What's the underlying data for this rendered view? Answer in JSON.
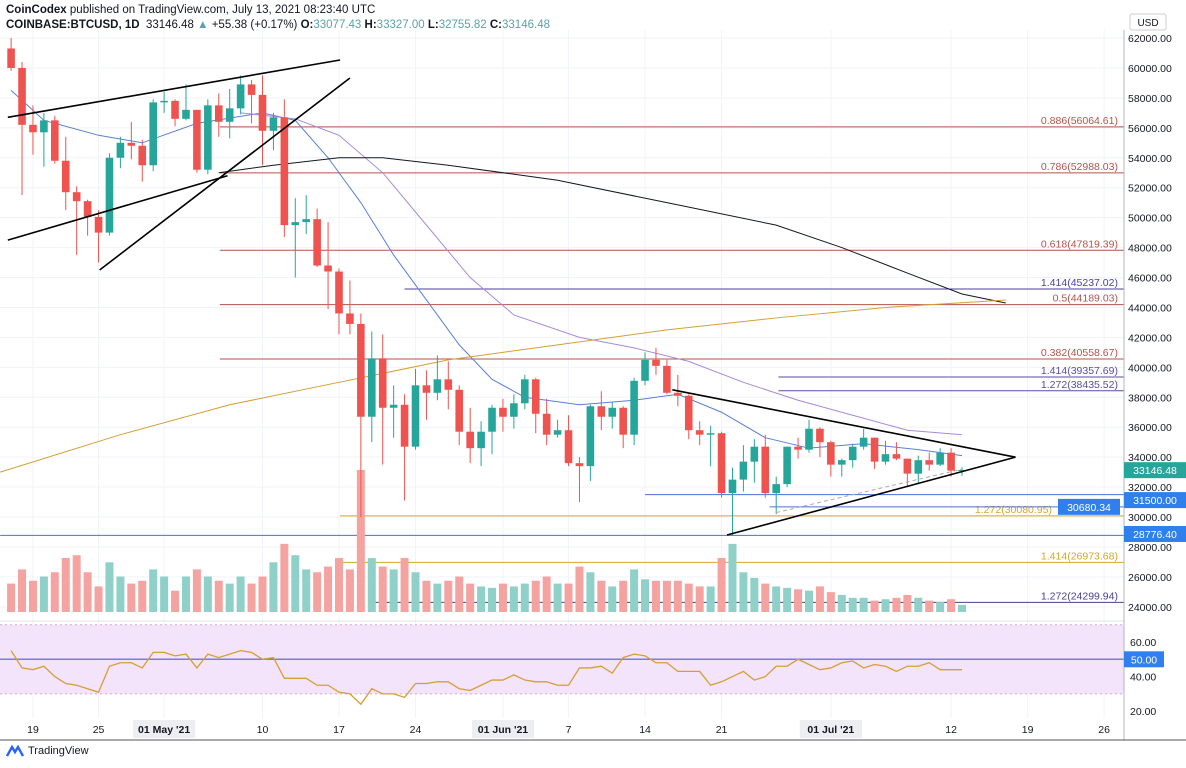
{
  "header": {
    "publisher": "CoinCodex",
    "published_text": "published on TradingView.com, July 13, 2021 08:23:40 UTC",
    "symbol": "COINBASE:BTCUSD, 1D",
    "last": "33146.48",
    "change": "+55.38 (+0.17%)",
    "o_label": "O:",
    "o": "33077.43",
    "h_label": "H:",
    "h": "33327.00",
    "l_label": "L:",
    "l": "32755.82",
    "c_label": "C:",
    "c": "33146.48"
  },
  "footer": {
    "brand": "TradingView"
  },
  "colors": {
    "up": "#26a69a",
    "down": "#ef5350",
    "up_vol": "#8fd0c8",
    "down_vol": "#f5a3a1",
    "rsi": "#d4a036",
    "rsi_band": "#f3e3fb"
  },
  "chart_data": {
    "type": "candlestick",
    "title": "COINBASE:BTCUSD, 1D",
    "currency_label": "USD",
    "start_date": "2021-04-17",
    "ylim": [
      24000,
      62000
    ],
    "price_ticks": [
      "62000.00",
      "60000.00",
      "58000.00",
      "56000.00",
      "54000.00",
      "52000.00",
      "50000.00",
      "48000.00",
      "46000.00",
      "44000.00",
      "42000.00",
      "40000.00",
      "38000.00",
      "36000.00",
      "34000.00",
      "32000.00",
      "30000.00",
      "28000.00",
      "26000.00",
      "24000.00"
    ],
    "date_ticks": [
      {
        "day": 2,
        "label": "19",
        "bold": false
      },
      {
        "day": 8,
        "label": "25",
        "bold": false
      },
      {
        "day": 14,
        "label": "01 May '21",
        "bold": true
      },
      {
        "day": 23,
        "label": "10",
        "bold": false
      },
      {
        "day": 30,
        "label": "17",
        "bold": false
      },
      {
        "day": 37,
        "label": "24",
        "bold": false
      },
      {
        "day": 45,
        "label": "01 Jun '21",
        "bold": true
      },
      {
        "day": 51,
        "label": "7",
        "bold": false
      },
      {
        "day": 58,
        "label": "14",
        "bold": false
      },
      {
        "day": 65,
        "label": "21",
        "bold": false
      },
      {
        "day": 75,
        "label": "01 Jul '21",
        "bold": true
      },
      {
        "day": 86,
        "label": "12",
        "bold": false
      },
      {
        "day": 93,
        "label": "19",
        "bold": false
      },
      {
        "day": 100,
        "label": "26",
        "bold": false
      }
    ],
    "ohlc": [
      [
        61300,
        62000,
        59800,
        60000
      ],
      [
        60000,
        60400,
        51500,
        56200
      ],
      [
        56200,
        57500,
        54200,
        55700
      ],
      [
        55700,
        57000,
        53400,
        56500
      ],
      [
        56500,
        56800,
        53600,
        53800
      ],
      [
        53800,
        55400,
        50500,
        51700
      ],
      [
        51700,
        52100,
        47500,
        51100
      ],
      [
        51100,
        51200,
        48800,
        50050
      ],
      [
        50050,
        50500,
        47000,
        49000
      ],
      [
        49000,
        54300,
        48800,
        54000
      ],
      [
        54000,
        55400,
        53300,
        55000
      ],
      [
        55000,
        56400,
        53900,
        54800
      ],
      [
        54800,
        55200,
        52400,
        53500
      ],
      [
        53500,
        57900,
        53100,
        57700
      ],
      [
        57700,
        58400,
        57000,
        57800
      ],
      [
        57800,
        57900,
        56100,
        56600
      ],
      [
        56600,
        58900,
        56500,
        57200
      ],
      [
        57200,
        57200,
        53000,
        53200
      ],
      [
        53200,
        57900,
        52900,
        57500
      ],
      [
        57500,
        58300,
        55400,
        56400
      ],
      [
        56400,
        58600,
        55300,
        57300
      ],
      [
        57300,
        59500,
        56900,
        58900
      ],
      [
        58900,
        59200,
        56300,
        58200
      ],
      [
        58200,
        59500,
        53500,
        55800
      ],
      [
        55800,
        57000,
        54500,
        56700
      ],
      [
        56700,
        57900,
        48700,
        49500
      ],
      [
        49500,
        51300,
        46000,
        49700
      ],
      [
        49700,
        51500,
        48900,
        49900
      ],
      [
        49900,
        50600,
        46700,
        46800
      ],
      [
        46800,
        49700,
        43900,
        46400
      ],
      [
        46400,
        46600,
        42200,
        43600
      ],
      [
        43600,
        45800,
        42200,
        42900
      ],
      [
        42900,
        43600,
        30000,
        36700
      ],
      [
        36700,
        42400,
        35000,
        40600
      ],
      [
        40600,
        42200,
        33500,
        37300
      ],
      [
        37300,
        38800,
        35300,
        37500
      ],
      [
        37500,
        38200,
        31100,
        34700
      ],
      [
        34700,
        39900,
        34500,
        38800
      ],
      [
        38800,
        39800,
        36500,
        38300
      ],
      [
        38300,
        40800,
        37800,
        39200
      ],
      [
        39200,
        40400,
        37200,
        38500
      ],
      [
        38500,
        38800,
        34800,
        35700
      ],
      [
        35700,
        37300,
        33600,
        34600
      ],
      [
        34600,
        36400,
        33400,
        35700
      ],
      [
        35700,
        37500,
        34200,
        37300
      ],
      [
        37300,
        37900,
        35700,
        36700
      ],
      [
        36700,
        38200,
        35900,
        37600
      ],
      [
        37600,
        39500,
        37200,
        39200
      ],
      [
        39200,
        39300,
        35600,
        36900
      ],
      [
        36900,
        37900,
        34800,
        35500
      ],
      [
        35500,
        36500,
        35300,
        35800
      ],
      [
        35800,
        36800,
        33400,
        33600
      ],
      [
        33600,
        34000,
        31000,
        33400
      ],
      [
        33400,
        37500,
        32400,
        37400
      ],
      [
        37400,
        38400,
        35800,
        36700
      ],
      [
        36700,
        37700,
        35900,
        37300
      ],
      [
        37300,
        37400,
        34600,
        35500
      ],
      [
        35500,
        39300,
        34800,
        39100
      ],
      [
        39100,
        41000,
        38800,
        40500
      ],
      [
        40500,
        41300,
        39500,
        40100
      ],
      [
        40100,
        40500,
        38200,
        38300
      ],
      [
        38300,
        39500,
        37400,
        38100
      ],
      [
        38100,
        38200,
        35200,
        35800
      ],
      [
        35800,
        36400,
        34800,
        35500
      ],
      [
        35500,
        36100,
        33400,
        35600
      ],
      [
        35600,
        35700,
        31300,
        31600
      ],
      [
        31600,
        33300,
        28800,
        32500
      ],
      [
        32500,
        34800,
        31700,
        33700
      ],
      [
        33700,
        35200,
        32300,
        34700
      ],
      [
        34700,
        35500,
        31300,
        31600
      ],
      [
        31600,
        32700,
        30200,
        32200
      ],
      [
        32200,
        34700,
        32000,
        34700
      ],
      [
        34700,
        35300,
        33900,
        34500
      ],
      [
        34500,
        36500,
        34300,
        35900
      ],
      [
        35900,
        36000,
        34000,
        35000
      ],
      [
        35000,
        35100,
        32700,
        33500
      ],
      [
        33500,
        33900,
        32700,
        33800
      ],
      [
        33800,
        34900,
        33300,
        34700
      ],
      [
        34700,
        35900,
        34500,
        35300
      ],
      [
        35300,
        35300,
        33200,
        33700
      ],
      [
        33700,
        35100,
        33500,
        34200
      ],
      [
        34200,
        35000,
        33800,
        33900
      ],
      [
        33900,
        33900,
        32100,
        32900
      ],
      [
        32900,
        34100,
        32300,
        33800
      ],
      [
        33800,
        34300,
        33100,
        33500
      ],
      [
        33500,
        34600,
        33400,
        34300
      ],
      [
        34300,
        34600,
        32700,
        33100
      ],
      [
        33077.43,
        33327,
        32755.82,
        33146.48
      ]
    ],
    "volume_relative": [
      20,
      30,
      22,
      25,
      28,
      38,
      40,
      28,
      18,
      35,
      25,
      20,
      22,
      30,
      25,
      15,
      25,
      30,
      25,
      22,
      20,
      25,
      20,
      25,
      35,
      48,
      40,
      30,
      28,
      32,
      38,
      30,
      100,
      38,
      32,
      30,
      38,
      28,
      22,
      20,
      22,
      25,
      20,
      18,
      17,
      20,
      18,
      20,
      22,
      25,
      20,
      20,
      32,
      28,
      22,
      18,
      22,
      30,
      23,
      22,
      22,
      22,
      20,
      18,
      18,
      38,
      48,
      28,
      24,
      20,
      18,
      17,
      16,
      15,
      18,
      14,
      12,
      10,
      10,
      8,
      9,
      10,
      12,
      10,
      8,
      7,
      9,
      5
    ],
    "moving_averages": [
      {
        "name": "MA20",
        "color": "#5b7fd6",
        "points": [
          [
            0,
            58500
          ],
          [
            3,
            56500
          ],
          [
            8,
            55500
          ],
          [
            12,
            55000
          ],
          [
            17,
            56300
          ],
          [
            23,
            57000
          ],
          [
            26,
            56500
          ],
          [
            29,
            54000
          ],
          [
            32,
            51000
          ],
          [
            35,
            47500
          ],
          [
            38,
            44500
          ],
          [
            41,
            41500
          ],
          [
            44,
            39200
          ],
          [
            47,
            38000
          ],
          [
            52,
            37500
          ],
          [
            57,
            37800
          ],
          [
            61,
            38200
          ],
          [
            65,
            37000
          ],
          [
            69,
            35300
          ],
          [
            73,
            34600
          ],
          [
            78,
            34900
          ],
          [
            83,
            34500
          ],
          [
            87,
            34100
          ]
        ]
      },
      {
        "name": "MA50",
        "color": "#a98ad8",
        "points": [
          [
            21,
            57000
          ],
          [
            26,
            56600
          ],
          [
            30,
            55500
          ],
          [
            34,
            53000
          ],
          [
            38,
            49500
          ],
          [
            42,
            46000
          ],
          [
            46,
            43500
          ],
          [
            52,
            42000
          ],
          [
            57,
            41300
          ],
          [
            62,
            40400
          ],
          [
            67,
            39000
          ],
          [
            72,
            37800
          ],
          [
            77,
            36800
          ],
          [
            82,
            35800
          ],
          [
            87,
            35500
          ]
        ]
      },
      {
        "name": "MA100",
        "color": "#131722",
        "points": [
          [
            19,
            53000
          ],
          [
            24,
            53500
          ],
          [
            30,
            54000
          ],
          [
            34,
            54000
          ],
          [
            40,
            53500
          ],
          [
            50,
            52500
          ],
          [
            60,
            51000
          ],
          [
            70,
            49500
          ],
          [
            76,
            48000
          ],
          [
            82,
            46300
          ],
          [
            87,
            44900
          ],
          [
            91,
            44300
          ]
        ]
      },
      {
        "name": "MA200",
        "color": "#d4a036",
        "points": [
          [
            -1,
            33000
          ],
          [
            10,
            35500
          ],
          [
            20,
            37500
          ],
          [
            30,
            39000
          ],
          [
            40,
            40500
          ],
          [
            50,
            41500
          ],
          [
            60,
            42500
          ],
          [
            70,
            43300
          ],
          [
            80,
            44000
          ],
          [
            91,
            44500
          ]
        ]
      }
    ],
    "levels": [
      {
        "label": "0.886(56064.61)",
        "value": 56064.61,
        "from_day": 19.1,
        "color": "#b5534a"
      },
      {
        "label": "0.786(52988.03)",
        "value": 52988.03,
        "from_day": 19.1,
        "color": "#b5534a"
      },
      {
        "label": "0.618(47819.39)",
        "value": 47819.39,
        "from_day": 19.1,
        "color": "#b5534a"
      },
      {
        "label": "1.414(45237.02)",
        "value": 45237.02,
        "from_day": 36,
        "color": "#4b3fa0"
      },
      {
        "label": "0.5(44189.03)",
        "value": 44189.03,
        "from_day": 19.1,
        "color": "#b5534a"
      },
      {
        "label": "0.382(40558.67)",
        "value": 40558.67,
        "from_day": 19.1,
        "color": "#b5534a"
      },
      {
        "label": "1.414(39357.69)",
        "value": 39357.69,
        "from_day": 70.2,
        "color": "#5a4ba8"
      },
      {
        "label": "1.272(38435.52)",
        "value": 38435.52,
        "from_day": 70.2,
        "color": "#5a4ba8"
      },
      {
        "label": "1.272(30080.95)",
        "value": 30080.95,
        "from_day": 30.1,
        "color": "#d4a62a"
      },
      {
        "label": "1.414(26973.68)",
        "value": 26973.68,
        "from_day": 30.1,
        "color": "#d4a62a"
      },
      {
        "label": "1.272(24299.94)",
        "value": 24299.94,
        "from_day": 32.8,
        "color": "#4b3f8f"
      }
    ],
    "price_tags": [
      {
        "label": "33146.48",
        "value": 33146.48,
        "color": "#26a69a",
        "line_from_day": null
      },
      {
        "label": "31500.00",
        "value": 31500,
        "color": "#2f80ed",
        "line_from_day": 58
      },
      {
        "label": "30680.34",
        "value": 30680.34,
        "color": "#2f80ed",
        "line_from_day": 69.4
      },
      {
        "label": "28776.40",
        "value": 28776.4,
        "color": "#2f80ed",
        "line_from_day": -1
      }
    ],
    "trendlines": [
      {
        "from": [
          -0.3,
          56700
        ],
        "to": [
          30.1,
          60530
        ],
        "dashed": false
      },
      {
        "from": [
          -0.3,
          48500
        ],
        "to": [
          19.8,
          52800
        ],
        "dashed": false
      },
      {
        "from": [
          8.1,
          46500
        ],
        "to": [
          31,
          59330
        ],
        "dashed": false
      },
      {
        "from": [
          60.5,
          38500
        ],
        "to": [
          91.9,
          34000
        ],
        "dashed": false
      },
      {
        "from": [
          65.5,
          28800
        ],
        "to": [
          91.9,
          34000
        ],
        "dashed": false
      },
      {
        "from": [
          70,
          30300
        ],
        "to": [
          87,
          33200
        ],
        "dashed": true
      }
    ],
    "rsi": {
      "ylim": [
        20,
        70
      ],
      "ticks": [
        "60.00",
        "40.00",
        "20.00"
      ],
      "midline_label": "50.00",
      "upper_band": 70,
      "lower_band": 30,
      "values": [
        55,
        45,
        44,
        46,
        40,
        36,
        35,
        33,
        31,
        46,
        48,
        48,
        45,
        54,
        54,
        52,
        53,
        45,
        53,
        51,
        53,
        55,
        54,
        50,
        51,
        39,
        39,
        39,
        35,
        35,
        31,
        30,
        24,
        33,
        30,
        30,
        28,
        36,
        36,
        37,
        37,
        33,
        32,
        35,
        38,
        38,
        41,
        38,
        37,
        37,
        35,
        35,
        45,
        45,
        46,
        42,
        51,
        53,
        52,
        48,
        48,
        43,
        43,
        43,
        35,
        37,
        40,
        43,
        38,
        40,
        46,
        46,
        50,
        47,
        44,
        45,
        48,
        49,
        45,
        47,
        46,
        43,
        46,
        46,
        48,
        44,
        44,
        44
      ]
    }
  }
}
